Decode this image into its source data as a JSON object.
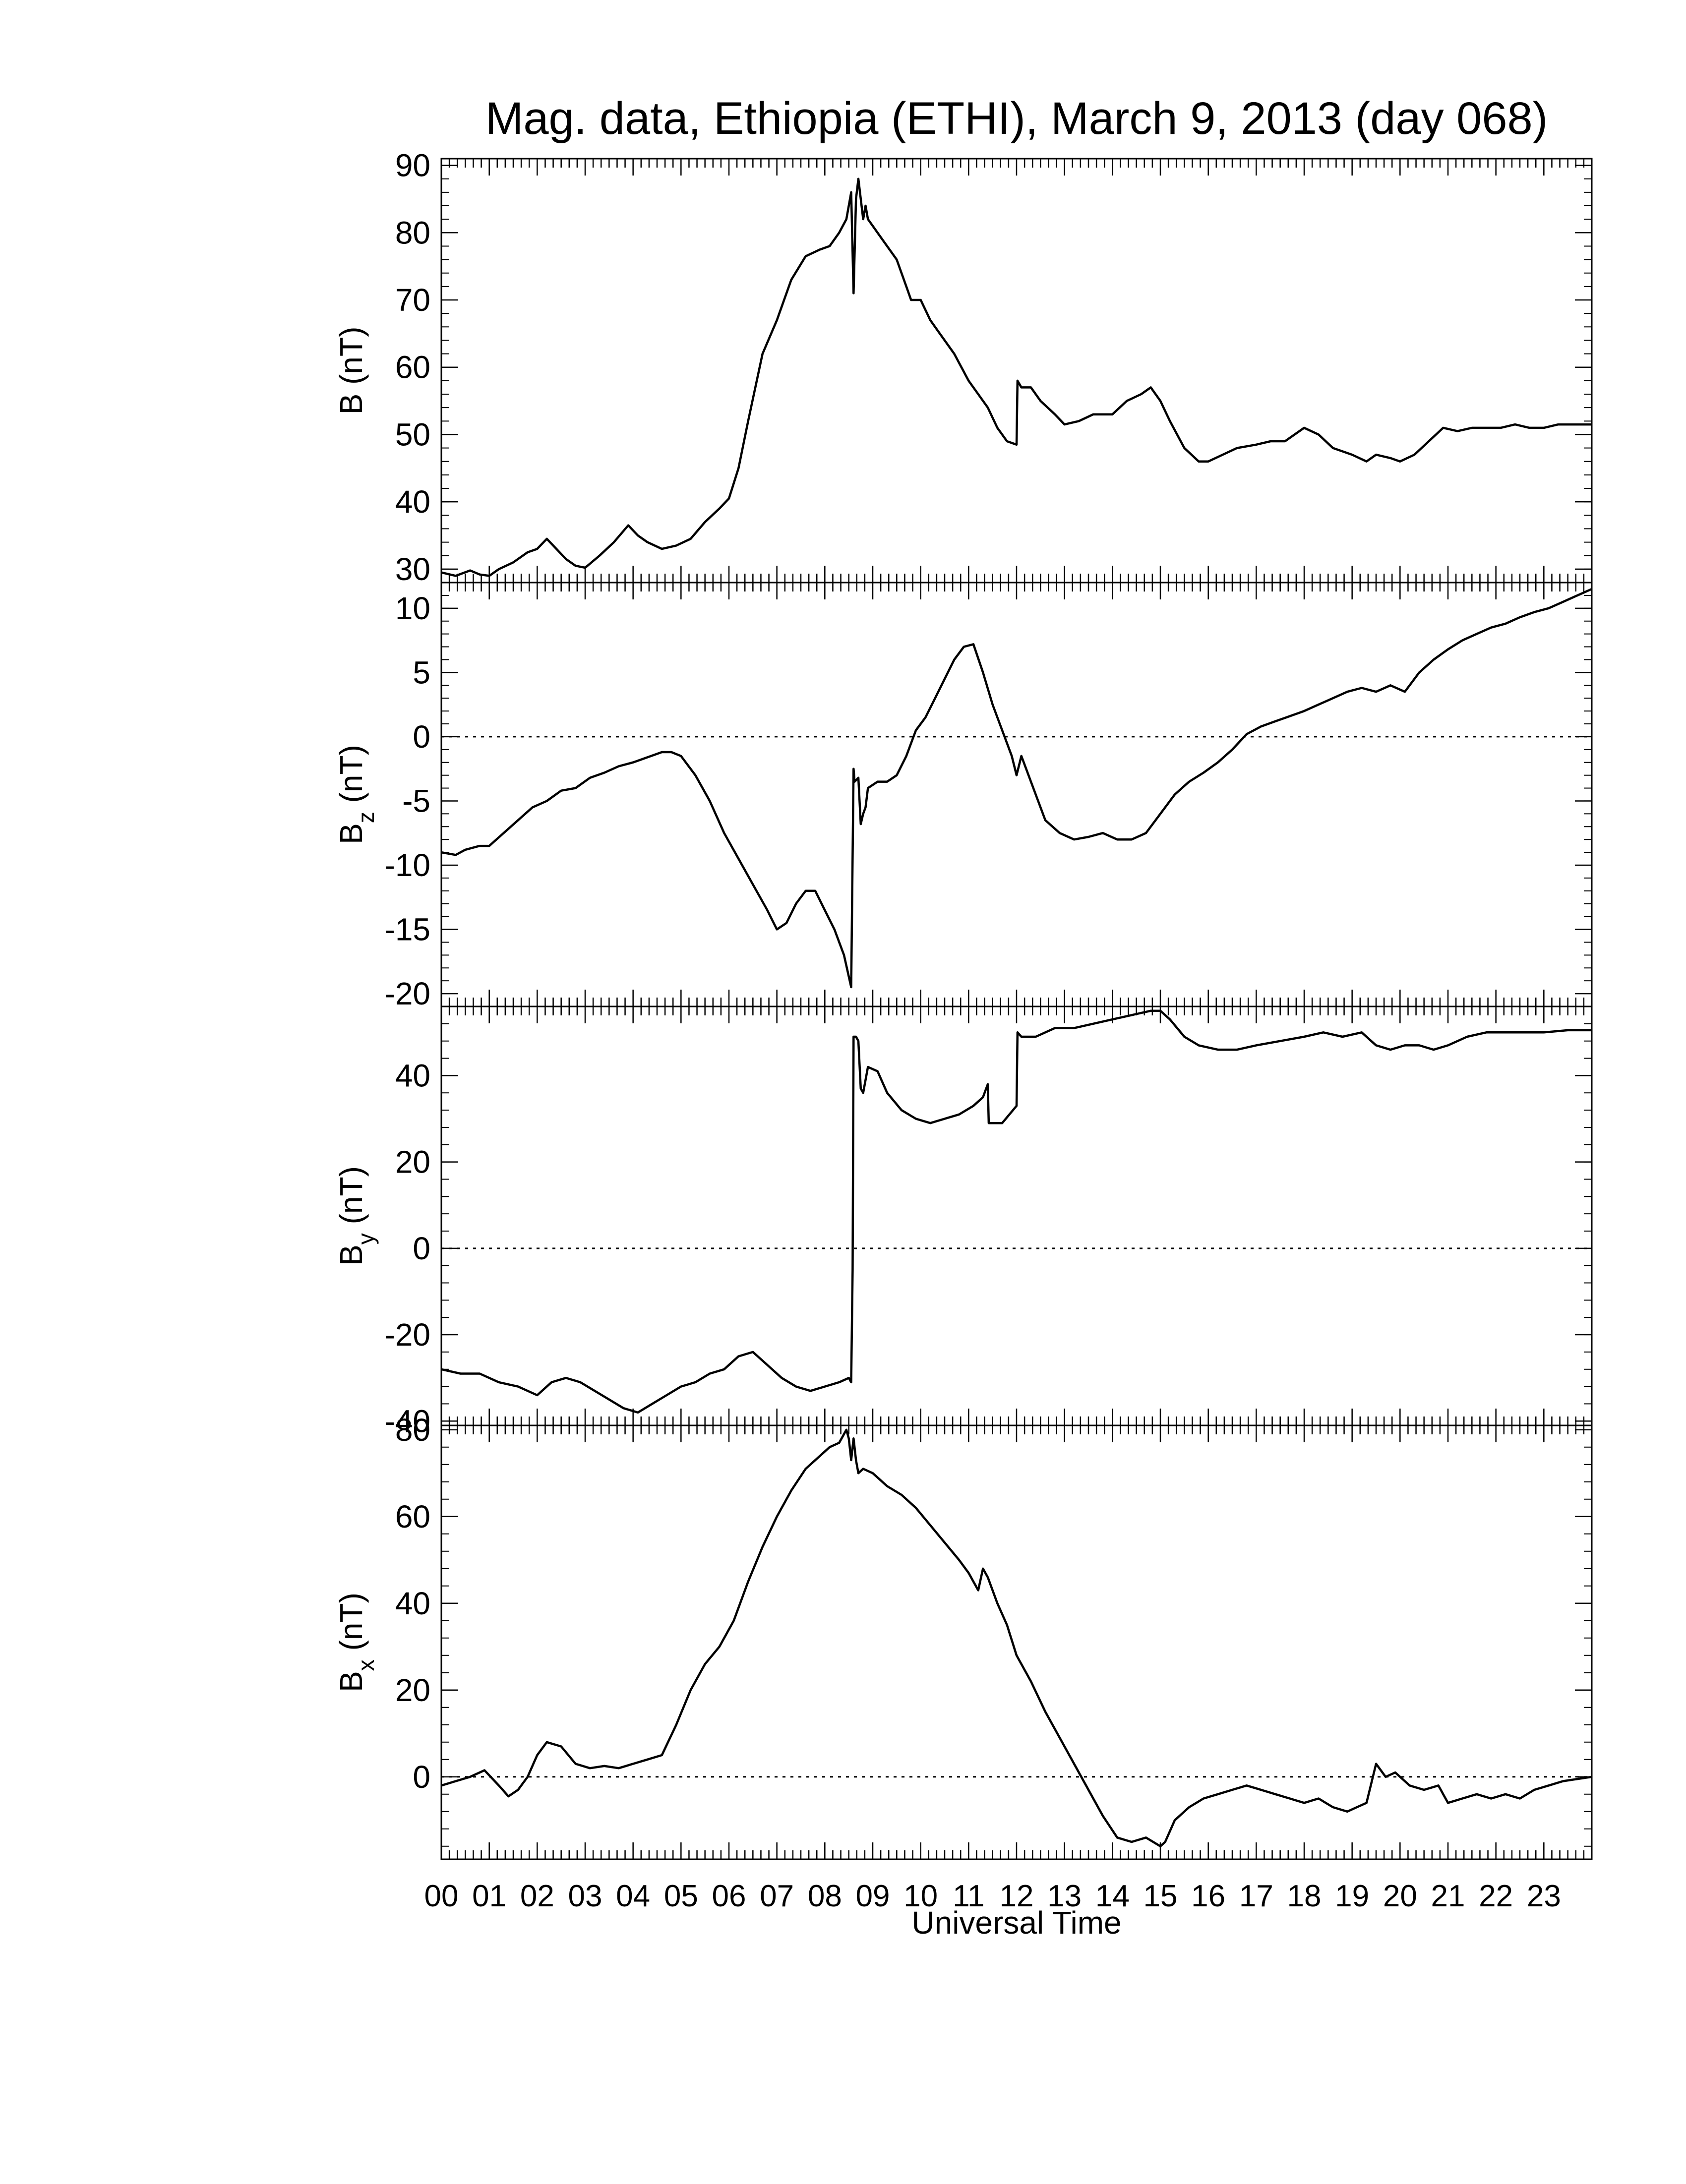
{
  "figure": {
    "title": "Mag. data, Ethiopia (ETHI), March 9, 2013 (day 068)",
    "xlabel": "Universal Time",
    "x_tick_labels": [
      "00",
      "01",
      "02",
      "03",
      "04",
      "05",
      "06",
      "07",
      "08",
      "09",
      "10",
      "11",
      "12",
      "13",
      "14",
      "15",
      "16",
      "17",
      "18",
      "19",
      "20",
      "21",
      "22",
      "23"
    ],
    "line_color": "#000000"
  },
  "chart_data": [
    {
      "type": "line",
      "ylabel_main": "B (nT)",
      "ylabel_sub": "",
      "ylim": [
        28,
        91
      ],
      "yticks": [
        30,
        40,
        50,
        60,
        70,
        80,
        90
      ],
      "zero_line": false,
      "xlim": [
        0,
        24
      ],
      "series": [
        {
          "x": [
            0,
            0.3,
            0.6,
            0.8,
            1.0,
            1.2,
            1.5,
            1.8,
            2.0,
            2.2,
            2.4,
            2.6,
            2.8,
            3.0,
            3.3,
            3.6,
            3.9,
            4.1,
            4.3,
            4.6,
            4.9,
            5.2,
            5.5,
            5.8,
            6.0,
            6.2,
            6.4,
            6.7,
            7.0,
            7.3,
            7.6,
            7.9,
            8.1,
            8.3,
            8.45,
            8.55,
            8.6,
            8.65,
            8.7,
            8.8,
            8.85,
            8.9,
            9.0,
            9.2,
            9.5,
            9.7,
            9.8,
            10.0,
            10.2,
            10.4,
            10.7,
            11.0,
            11.2,
            11.4,
            11.6,
            11.8,
            12.0,
            12.02,
            12.1,
            12.3,
            12.5,
            12.8,
            13.0,
            13.3,
            13.6,
            14.0,
            14.3,
            14.6,
            14.8,
            15.0,
            15.2,
            15.5,
            15.8,
            16.0,
            16.3,
            16.6,
            17.0,
            17.3,
            17.6,
            18.0,
            18.3,
            18.6,
            19.0,
            19.3,
            19.5,
            19.8,
            20.0,
            20.3,
            20.6,
            20.9,
            21.2,
            21.5,
            21.8,
            22.1,
            22.4,
            22.7,
            23.0,
            23.3,
            23.6,
            24.0
          ],
          "y": [
            29.5,
            29,
            29.8,
            29.2,
            29,
            30,
            31,
            32.5,
            33,
            34.5,
            33,
            31.5,
            30.5,
            30.2,
            32,
            34,
            36.5,
            35,
            34,
            33,
            33.5,
            34.5,
            37,
            39,
            40.5,
            45,
            52,
            62,
            67,
            73,
            76.5,
            77.5,
            78,
            80,
            82,
            86,
            71,
            85,
            88,
            82,
            84,
            82,
            81,
            79,
            76,
            72,
            70,
            70,
            67,
            65,
            62,
            58,
            56,
            54,
            51,
            49,
            48.5,
            58,
            57,
            57,
            55,
            53,
            51.5,
            52,
            53,
            53,
            55,
            56,
            57,
            55,
            52,
            48,
            46,
            46,
            47,
            48,
            48.5,
            49,
            49,
            51,
            50,
            48,
            47,
            46,
            47,
            46.5,
            46,
            47,
            49,
            51,
            50.5,
            51,
            51,
            51,
            51.5,
            51,
            51,
            51.5,
            51.5,
            51.5
          ],
          "name": ""
        }
      ]
    },
    {
      "type": "line",
      "ylabel_main": "B",
      "ylabel_sub": "z",
      "ylabel_unit": " (nT)",
      "ylim": [
        -21,
        12
      ],
      "yticks": [
        -20,
        -15,
        -10,
        -5,
        0,
        5,
        10
      ],
      "ytick_labels": [
        "-20",
        "-15",
        "-10",
        "-5",
        "0",
        "5",
        "10"
      ],
      "zero_line": true,
      "xlim": [
        0,
        24
      ],
      "series": [
        {
          "x": [
            0,
            0.3,
            0.5,
            0.8,
            1.0,
            1.3,
            1.6,
            1.9,
            2.2,
            2.5,
            2.8,
            3.1,
            3.4,
            3.7,
            4.0,
            4.3,
            4.6,
            4.8,
            5.0,
            5.3,
            5.6,
            5.9,
            6.2,
            6.5,
            6.8,
            7.0,
            7.2,
            7.4,
            7.6,
            7.8,
            8.0,
            8.2,
            8.4,
            8.55,
            8.6,
            8.62,
            8.7,
            8.75,
            8.8,
            8.85,
            8.9,
            9.1,
            9.3,
            9.5,
            9.7,
            9.9,
            10.1,
            10.3,
            10.5,
            10.7,
            10.9,
            11.1,
            11.3,
            11.5,
            11.7,
            11.9,
            12.0,
            12.1,
            12.3,
            12.6,
            12.9,
            13.2,
            13.5,
            13.8,
            14.1,
            14.4,
            14.7,
            15.0,
            15.3,
            15.6,
            15.9,
            16.2,
            16.5,
            16.8,
            17.1,
            17.4,
            17.7,
            18.0,
            18.3,
            18.6,
            18.9,
            19.2,
            19.5,
            19.8,
            20.1,
            20.4,
            20.7,
            21.0,
            21.3,
            21.6,
            21.9,
            22.2,
            22.5,
            22.8,
            23.1,
            23.4,
            23.7,
            24.0
          ],
          "y": [
            -9,
            -9.2,
            -8.8,
            -8.5,
            -8.5,
            -7.5,
            -6.5,
            -5.5,
            -5,
            -4.2,
            -4,
            -3.2,
            -2.8,
            -2.3,
            -2,
            -1.6,
            -1.2,
            -1.2,
            -1.5,
            -3,
            -5,
            -7.5,
            -9.5,
            -11.5,
            -13.5,
            -15,
            -14.5,
            -13,
            -12,
            -12,
            -13.5,
            -15,
            -17,
            -19.5,
            -2.5,
            -3.5,
            -3.2,
            -6.8,
            -6,
            -5.5,
            -4,
            -3.5,
            -3.5,
            -3,
            -1.5,
            0.5,
            1.5,
            3,
            4.5,
            6,
            7,
            7.2,
            5,
            2.5,
            0.5,
            -1.5,
            -3,
            -1.5,
            -3.5,
            -6.5,
            -7.5,
            -8,
            -7.8,
            -7.5,
            -8,
            -8,
            -7.5,
            -6,
            -4.5,
            -3.5,
            -2.8,
            -2,
            -1,
            0.2,
            0.8,
            1.2,
            1.6,
            2,
            2.5,
            3,
            3.5,
            3.8,
            3.5,
            4,
            3.5,
            5,
            6,
            6.8,
            7.5,
            8,
            8.5,
            8.8,
            9.3,
            9.7,
            10,
            10.5,
            11,
            11.5
          ],
          "name": ""
        }
      ]
    },
    {
      "type": "line",
      "ylabel_main": "B",
      "ylabel_sub": "y",
      "ylabel_unit": " (nT)",
      "ylim": [
        -41,
        56
      ],
      "yticks": [
        -40,
        -20,
        0,
        20,
        40
      ],
      "ytick_labels": [
        "-40",
        "-20",
        "0",
        "20",
        "40"
      ],
      "zero_line": true,
      "xlim": [
        0,
        24
      ],
      "series": [
        {
          "x": [
            0,
            0.4,
            0.8,
            1.2,
            1.6,
            2.0,
            2.3,
            2.6,
            2.9,
            3.2,
            3.5,
            3.8,
            4.1,
            4.4,
            4.7,
            5.0,
            5.3,
            5.6,
            5.9,
            6.2,
            6.5,
            6.8,
            7.1,
            7.4,
            7.7,
            8.0,
            8.3,
            8.5,
            8.55,
            8.58,
            8.6,
            8.65,
            8.7,
            8.75,
            8.8,
            8.9,
            9.1,
            9.3,
            9.6,
            9.9,
            10.2,
            10.5,
            10.8,
            11.1,
            11.3,
            11.4,
            11.42,
            11.7,
            12.0,
            12.02,
            12.1,
            12.4,
            12.8,
            13.2,
            13.6,
            14.0,
            14.4,
            14.8,
            15.0,
            15.2,
            15.5,
            15.8,
            16.2,
            16.6,
            17.0,
            17.5,
            18.0,
            18.4,
            18.8,
            19.2,
            19.5,
            19.8,
            20.1,
            20.4,
            20.7,
            21.0,
            21.4,
            21.8,
            22.2,
            22.6,
            23.0,
            23.5,
            24.0
          ],
          "y": [
            -28,
            -29,
            -29,
            -31,
            -32,
            -34,
            -31,
            -30,
            -31,
            -33,
            -35,
            -37,
            -38,
            -36,
            -34,
            -32,
            -31,
            -29,
            -28,
            -25,
            -24,
            -27,
            -30,
            -32,
            -33,
            -32,
            -31,
            -30,
            -31,
            -5,
            49,
            49,
            48,
            37,
            36,
            42,
            41,
            36,
            32,
            30,
            29,
            30,
            31,
            33,
            35,
            38,
            29,
            29,
            33,
            50,
            49,
            49,
            51,
            51,
            52,
            53,
            54,
            55,
            55,
            53,
            49,
            47,
            46,
            46,
            47,
            48,
            49,
            50,
            49,
            50,
            47,
            46,
            47,
            47,
            46,
            47,
            49,
            50,
            50,
            50,
            50,
            50.5,
            50.5
          ],
          "name": ""
        }
      ]
    },
    {
      "type": "line",
      "ylabel_main": "B",
      "ylabel_sub": "x",
      "ylabel_unit": " (nT)",
      "ylim": [
        -19,
        81
      ],
      "yticks": [
        0,
        20,
        40,
        60,
        80
      ],
      "ytick_labels": [
        "0",
        "20",
        "40",
        "60",
        "80"
      ],
      "zero_line": true,
      "xlim": [
        0,
        24
      ],
      "series": [
        {
          "x": [
            0,
            0.3,
            0.6,
            0.9,
            1.2,
            1.4,
            1.6,
            1.8,
            2.0,
            2.2,
            2.5,
            2.8,
            3.1,
            3.4,
            3.7,
            4.0,
            4.3,
            4.6,
            4.9,
            5.2,
            5.5,
            5.8,
            6.1,
            6.4,
            6.7,
            7.0,
            7.3,
            7.6,
            7.9,
            8.1,
            8.3,
            8.45,
            8.5,
            8.55,
            8.6,
            8.65,
            8.7,
            8.8,
            9.0,
            9.3,
            9.6,
            9.9,
            10.2,
            10.5,
            10.8,
            11.0,
            11.2,
            11.3,
            11.4,
            11.6,
            11.8,
            12.0,
            12.3,
            12.6,
            12.9,
            13.2,
            13.5,
            13.8,
            14.1,
            14.4,
            14.7,
            15.0,
            15.1,
            15.3,
            15.6,
            15.9,
            16.2,
            16.5,
            16.8,
            17.1,
            17.4,
            17.7,
            18.0,
            18.3,
            18.6,
            18.9,
            19.1,
            19.3,
            19.5,
            19.7,
            19.9,
            20.2,
            20.5,
            20.8,
            21.0,
            21.3,
            21.6,
            21.9,
            22.2,
            22.5,
            22.8,
            23.1,
            23.4,
            23.7,
            24.0
          ],
          "y": [
            -2,
            -1,
            0,
            1.5,
            -2,
            -4.5,
            -3,
            0,
            5,
            8,
            7,
            3,
            2,
            2.5,
            2,
            3,
            4,
            5,
            12,
            20,
            26,
            30,
            36,
            45,
            53,
            60,
            66,
            71,
            74,
            76,
            77,
            80,
            78,
            73,
            78,
            73,
            70,
            71,
            70,
            67,
            65,
            62,
            58,
            54,
            50,
            47,
            43,
            48,
            46,
            40,
            35,
            28,
            22,
            15,
            9,
            3,
            -3,
            -9,
            -14,
            -15,
            -14,
            -16,
            -15,
            -10,
            -7,
            -5,
            -4,
            -3,
            -2,
            -3,
            -4,
            -5,
            -6,
            -5,
            -7,
            -8,
            -7,
            -6,
            3,
            0,
            1,
            -2,
            -3,
            -2,
            -6,
            -5,
            -4,
            -5,
            -4,
            -5,
            -3,
            -2,
            -1,
            -0.5,
            0
          ],
          "name": ""
        }
      ]
    }
  ]
}
